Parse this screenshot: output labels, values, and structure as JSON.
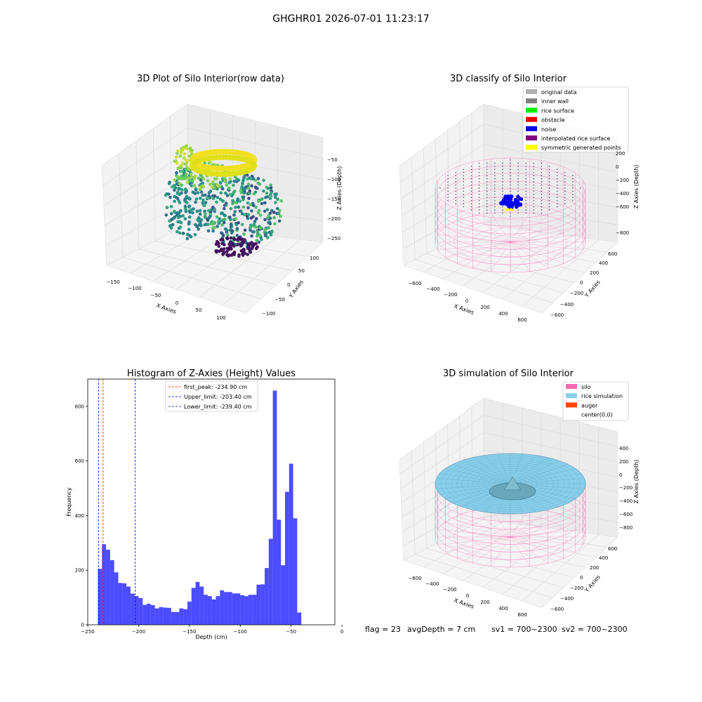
{
  "suptitle": "GHGHR01 2026-07-01 11:23:17",
  "panels": {
    "raw": {
      "title": "3D Plot of Silo Interior(row data)",
      "xlabel": "X Axies",
      "ylabel": "Y Axies",
      "zlabel": "Z Axies (Depth)",
      "xticks": [
        "−150",
        "−100",
        "−50",
        "0",
        "50",
        "100"
      ],
      "yticks": [
        "−100",
        "−50",
        "0",
        "50",
        "100"
      ],
      "zticks": [
        "−50",
        "−100",
        "−150",
        "−200",
        "−250"
      ]
    },
    "classify": {
      "title": "3D classify of Silo Interior",
      "xlabel": "X Axies",
      "ylabel": "Y Axies",
      "zlabel": "Z Axies (Depth)",
      "xticks": [
        "−600",
        "−400",
        "−200",
        "0",
        "200",
        "400",
        "600"
      ],
      "yticks": [
        "−600",
        "−400",
        "−200",
        "0",
        "200",
        "400",
        "600"
      ],
      "zticks": [
        "200",
        "0",
        "−200",
        "−400",
        "−600",
        "−800"
      ],
      "legend": [
        {
          "label": "original data",
          "color": "#b0b0b0"
        },
        {
          "label": "inner wall",
          "color": "#808080"
        },
        {
          "label": "rice surface",
          "color": "#00ee00"
        },
        {
          "label": "obstacle",
          "color": "#ee0000"
        },
        {
          "label": "noise",
          "color": "#0000ee"
        },
        {
          "label": "interpolated rice surface",
          "color": "#800080"
        },
        {
          "label": "symmetric generated points",
          "color": "#ffff00"
        }
      ]
    },
    "simulation": {
      "title": "3D simulation of Silo Interior",
      "xlabel": "X Axies",
      "ylabel": "Y Axies",
      "zlabel": "Z Axies (Depth)",
      "xticks": [
        "−600",
        "−400",
        "−200",
        "0",
        "200",
        "400",
        "600"
      ],
      "yticks": [
        "−600",
        "−400",
        "−200",
        "0",
        "200",
        "400",
        "600"
      ],
      "zticks": [
        "400",
        "200",
        "0",
        "−200",
        "−400",
        "−600",
        "−800"
      ],
      "legend": [
        {
          "label": "silo",
          "color": "#ff69b4"
        },
        {
          "label": "rice simulation",
          "color": "#87ceeb"
        },
        {
          "label": "auger",
          "color": "#ff4500"
        },
        {
          "label": "center(0,0)",
          "color": "#ffffff"
        }
      ]
    }
  },
  "footer": {
    "flag": "flag = 23",
    "avg": "avgDepth = 7 cm",
    "sv1": "sv1 = 700~2300",
    "sv2": "sv2 = 700~2300"
  },
  "chart_data": {
    "type": "bar",
    "title": "Histogram of Z-Axies (Height) Values",
    "xlabel": "Depth (cm)",
    "ylabel": "Frequency",
    "xlim": [
      -250,
      -7
    ],
    "ylim": [
      0,
      900
    ],
    "xticks": [
      -250,
      -200,
      -150,
      -100,
      -50,
      0
    ],
    "yticks": [
      0,
      200,
      400,
      600,
      800
    ],
    "bin_start": -240.0,
    "bin_width": 4.0,
    "values": [
      205,
      295,
      275,
      237,
      192,
      153,
      152,
      140,
      114,
      105,
      98,
      73,
      77,
      72,
      60,
      65,
      63,
      62,
      47,
      47,
      60,
      57,
      85,
      135,
      157,
      140,
      110,
      105,
      93,
      105,
      126,
      120,
      120,
      115,
      115,
      108,
      105,
      110,
      110,
      147,
      148,
      208,
      315,
      858,
      385,
      218,
      487,
      590,
      390,
      45
    ],
    "color": "#0000ff",
    "vlines": [
      {
        "label": "first_peak: -234.90 cm",
        "x": -234.9,
        "color": "#ff0000"
      },
      {
        "label": "Upper_limit: -203.40 cm",
        "x": -203.4,
        "color": "#0000ff"
      },
      {
        "label": "Lower_limit: -239.40 cm",
        "x": -239.4,
        "color": "#0000ff"
      }
    ]
  }
}
